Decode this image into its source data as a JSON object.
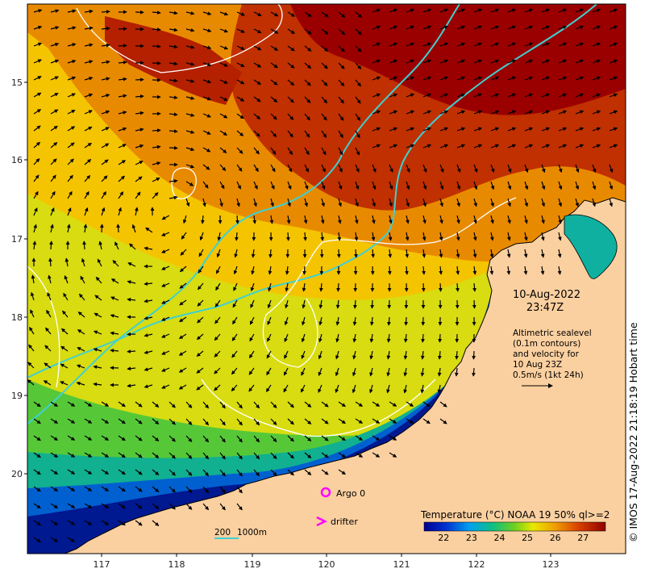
{
  "map": {
    "lat_ticks": [
      "15",
      "16",
      "17",
      "18",
      "19",
      "20"
    ],
    "lon_ticks": [
      "117",
      "118",
      "119",
      "120",
      "121",
      "122",
      "123"
    ],
    "date": "10-Aug-2022",
    "time": "23:47Z",
    "legend_text": [
      "Altimetric sealevel",
      "(0.1m contours)",
      "and velocity for",
      "10 Aug 23Z",
      "0.5m/s (1kt 24h)"
    ],
    "argo_label": "Argo 0",
    "drifter_label": "drifter",
    "depth_label_200": "200",
    "depth_label_1000": "1000m",
    "colorbar_title": "Temperature (°C) NOAA 19 50% ql>=2",
    "colorbar_ticks": [
      "22",
      "23",
      "24",
      "25",
      "26",
      "27"
    ],
    "colorbar_range": [
      21.3,
      27.8
    ],
    "copyright": "© IMOS 17-Aug-2022 21:18:19 Hobart time",
    "colors": {
      "land": "#fbd0a0",
      "isobath": "#40d0d0",
      "argo": "#ff00ff",
      "contour": "#ffffff"
    }
  }
}
